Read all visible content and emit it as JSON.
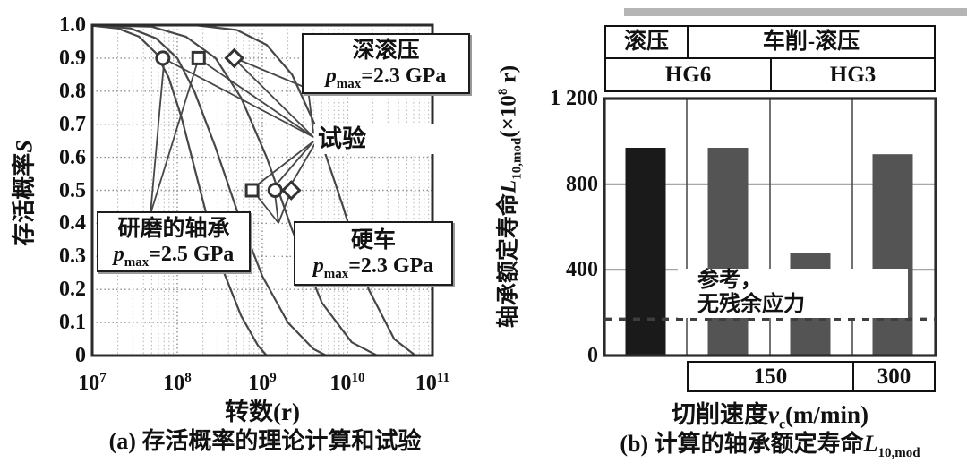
{
  "colors": {
    "bar_black": "#1a1a1a",
    "bar_gray": "#545454",
    "plot_border": "#2b2b2b",
    "curve": "#474747",
    "grid_minor": "#b3b3b3",
    "grid_major": "#8f8f8f",
    "grid_b": "#4f4f4f",
    "dashed_ref": "#3f3f3f"
  },
  "text": {
    "ylabel_a": {
      "t1": "存活概率",
      "sym": "S"
    },
    "xlabel_a": "转数(r)",
    "caption_a": "(a) 存活概率的理论计算和试验",
    "test": "试验",
    "deep": {
      "l1": "深滚压",
      "p": "p",
      "sub": "max",
      "eq": "=2.3 GPa"
    },
    "ground": {
      "l1": "研磨的轴承",
      "p": "p",
      "sub": "max",
      "eq": "=2.5 GPa"
    },
    "hard": {
      "l1": "硬车",
      "p": "p",
      "sub": "max",
      "eq": "=2.3 GPa"
    },
    "ylabel_b": {
      "t1": "轴承额定寿命",
      "L": "L",
      "sub": "10,mod",
      "t2": "(×10",
      "sup": "8",
      "t3": " r)"
    },
    "xlabel_b": {
      "t1": "切削速度",
      "v": "v",
      "sub": "c",
      "t2": "(m/min)"
    },
    "caption_b": {
      "t1": "(b) 计算的轴承额定寿命",
      "L": "L",
      "sub": "10,mod"
    },
    "ref_note": {
      "l1": "参考，",
      "l2": "无残余应力"
    }
  },
  "chart_data": [
    {
      "id": "survival-probability",
      "type": "line",
      "title": "(a) 存活概率的理论计算和试验",
      "xlabel": "转数(r)",
      "ylabel": "存活概率S",
      "xscale": "log",
      "xlim": [
        10000000.0,
        100000000000.0
      ],
      "ylim": [
        0,
        1.0
      ],
      "x_tick_base": "10",
      "x_tick_exponents": [
        7,
        8,
        9,
        10,
        11
      ],
      "y_ticks": [
        1.0,
        0.9,
        0.8,
        0.7,
        0.6,
        0.5,
        0.4,
        0.3,
        0.2,
        0.1,
        0
      ],
      "y_tick_labels": [
        "1.0",
        "0.9",
        "0.8",
        "0.7",
        "0.6",
        "0.5",
        "0.4",
        "0.3",
        "0.2",
        "0.1",
        "0"
      ],
      "grid": true,
      "series": [
        {
          "name": "研磨的轴承 pmax=2.5 GPa 理论曲线",
          "points": [
            [
              7,
              0.998
            ],
            [
              7.3,
              0.99
            ],
            [
              7.55,
              0.965
            ],
            [
              7.75,
              0.915
            ],
            [
              7.9,
              0.84
            ],
            [
              8.05,
              0.72
            ],
            [
              8.2,
              0.57
            ],
            [
              8.35,
              0.42
            ],
            [
              8.55,
              0.25
            ],
            [
              8.75,
              0.12
            ],
            [
              8.95,
              0.03
            ],
            [
              9.05,
              0
            ]
          ]
        },
        {
          "name": "理论曲线 2",
          "points": [
            [
              7,
              1
            ],
            [
              7.45,
              0.99
            ],
            [
              7.75,
              0.96
            ],
            [
              8.0,
              0.9
            ],
            [
              8.2,
              0.8
            ],
            [
              8.45,
              0.63
            ],
            [
              8.7,
              0.44
            ],
            [
              9.0,
              0.24
            ],
            [
              9.3,
              0.1
            ],
            [
              9.6,
              0.02
            ],
            [
              9.75,
              0
            ]
          ]
        },
        {
          "name": "硬车 pmax=2.3 GPa 理论曲线",
          "points": [
            [
              7,
              1
            ],
            [
              7.7,
              0.995
            ],
            [
              8.1,
              0.965
            ],
            [
              8.45,
              0.9
            ],
            [
              8.75,
              0.78
            ],
            [
              9.05,
              0.6
            ],
            [
              9.35,
              0.38
            ],
            [
              9.7,
              0.16
            ],
            [
              10.05,
              0.04
            ],
            [
              10.35,
              0
            ]
          ]
        },
        {
          "name": "深滚压 pmax=2.3 GPa 理论曲线",
          "points": [
            [
              7,
              1
            ],
            [
              8.2,
              1
            ],
            [
              8.7,
              0.985
            ],
            [
              9.05,
              0.94
            ],
            [
              9.35,
              0.85
            ],
            [
              9.65,
              0.68
            ],
            [
              9.95,
              0.45
            ],
            [
              10.25,
              0.2
            ],
            [
              10.55,
              0.05
            ],
            [
              10.8,
              0
            ]
          ]
        }
      ],
      "test_points": [
        {
          "marker": "circle",
          "log10x": 7.83,
          "S": 0.9
        },
        {
          "marker": "square",
          "log10x": 8.25,
          "S": 0.9
        },
        {
          "marker": "diamond",
          "log10x": 8.67,
          "S": 0.9
        },
        {
          "marker": "square",
          "log10x": 8.88,
          "S": 0.5
        },
        {
          "marker": "circle",
          "log10x": 9.15,
          "S": 0.5
        },
        {
          "marker": "diamond",
          "log10x": 9.34,
          "S": 0.5
        }
      ],
      "annotations": [
        "深滚压 pmax=2.3 GPa",
        "试验",
        "研磨的轴承 pmax=2.5 GPa",
        "硬车 pmax=2.3 GPa"
      ]
    },
    {
      "id": "bearing-rated-life",
      "type": "bar",
      "title": "(b) 计算的轴承额定寿命L10,mod",
      "ylabel": "轴承额定寿命L10,mod(×10^8 r)",
      "xlabel": "切削速度vc(m/min)",
      "ylim": [
        0,
        1200
      ],
      "y_ticks": [
        1200,
        800,
        400,
        0
      ],
      "y_tick_labels": [
        "1 200",
        "800",
        "400",
        "0"
      ],
      "process_row": [
        "滚压",
        "车削-滚压"
      ],
      "grade_row": [
        "HG6",
        "HG3"
      ],
      "speed_row": [
        "150",
        "300"
      ],
      "bars": [
        {
          "process": "滚压",
          "grade": "HG6",
          "speed": null,
          "value": 970,
          "color": "black"
        },
        {
          "process": "车削-滚压",
          "grade": "HG6",
          "speed": "150",
          "value": 970,
          "color": "gray"
        },
        {
          "process": "车削-滚压",
          "grade": "HG3",
          "speed": "150",
          "value": 480,
          "color": "gray"
        },
        {
          "process": "车削-滚压",
          "grade": "HG3",
          "speed": "300",
          "value": 940,
          "color": "gray"
        }
      ],
      "reference_line": {
        "value": 170,
        "label": "参考，无残余应力"
      }
    }
  ]
}
